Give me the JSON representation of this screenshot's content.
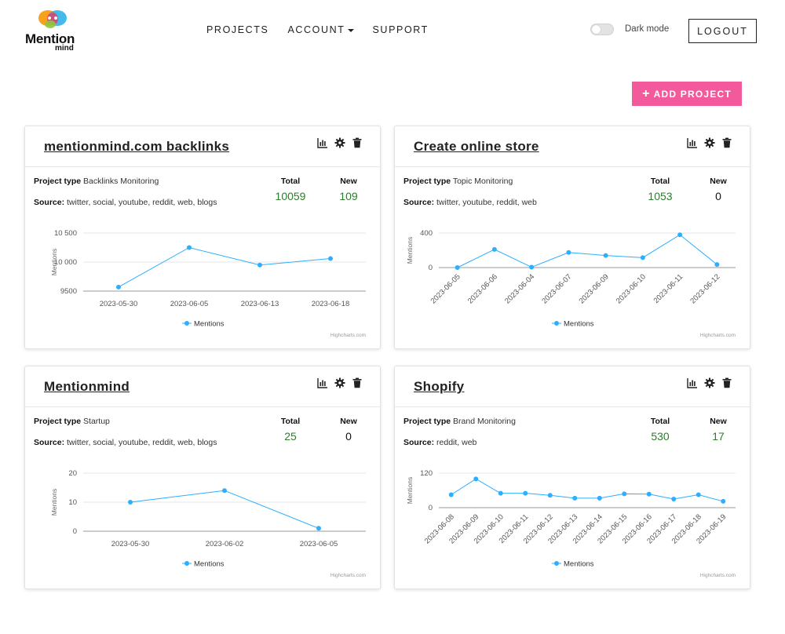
{
  "brand": {
    "name": "Mention",
    "sub": "mind"
  },
  "nav": {
    "projects": "PROJECTS",
    "account": "ACCOUNT",
    "support": "SUPPORT"
  },
  "header": {
    "dark_mode_label": "Dark mode",
    "logout_label": "LOGOUT"
  },
  "add_project_label": "ADD PROJECT",
  "labels": {
    "project_type": "Project type",
    "source": "Source:",
    "total": "Total",
    "new": "New",
    "legend": "Mentions",
    "axis_title": "Mentions",
    "credit": "Highcharts.com"
  },
  "colors": {
    "accent": "#f25a9b",
    "series": "#2caffe",
    "count_green": "#2c7c2c"
  },
  "projects": [
    {
      "title": "mentionmind.com backlinks",
      "type": "Backlinks Monitoring",
      "source": "twitter, social, youtube, reddit, web, blogs",
      "total": "10059",
      "new": "109",
      "new_green": true,
      "chart_data": {
        "type": "line",
        "x": [
          "2023-05-30",
          "2023-06-05",
          "2023-06-13",
          "2023-06-18"
        ],
        "series": [
          {
            "name": "Mentions",
            "values": [
              9570,
              10250,
              9950,
              10060
            ]
          }
        ],
        "ylim": [
          9500,
          10500
        ],
        "yticks": [
          "10 500",
          "10 000",
          "9500"
        ],
        "ytick_values": [
          10500,
          10000,
          9500
        ],
        "xlabels_rotated": false,
        "ylabel": "Mentions",
        "grid": true,
        "legend": "bottom-center"
      }
    },
    {
      "title": "Create online store",
      "type": "Topic Monitoring",
      "source": "twitter, youtube, reddit, web",
      "total": "1053",
      "new": "0",
      "new_green": false,
      "chart_data": {
        "type": "line",
        "x": [
          "2023-06-05",
          "2023-06-06",
          "2023-06-04",
          "2023-06-07",
          "2023-06-09",
          "2023-06-10",
          "2023-06-11",
          "2023-06-12"
        ],
        "series": [
          {
            "name": "Mentions",
            "values": [
              0,
              210,
              5,
              175,
              140,
              115,
              380,
              35
            ]
          }
        ],
        "ylim": [
          0,
          400
        ],
        "yticks": [
          "400",
          "0"
        ],
        "ytick_values": [
          400,
          0
        ],
        "xlabels_rotated": true,
        "ylabel": "Mentions",
        "grid": true,
        "legend": "bottom-center"
      }
    },
    {
      "title": "Mentionmind",
      "type": "Startup",
      "source": "twitter, social, youtube, reddit, web, blogs",
      "total": "25",
      "new": "0",
      "new_green": false,
      "chart_data": {
        "type": "line",
        "x": [
          "2023-05-30",
          "2023-06-02",
          "2023-06-05"
        ],
        "series": [
          {
            "name": "Mentions",
            "values": [
              10,
              14,
              1
            ]
          }
        ],
        "ylim": [
          0,
          20
        ],
        "yticks": [
          "20",
          "10",
          "0"
        ],
        "ytick_values": [
          20,
          10,
          0
        ],
        "xlabels_rotated": false,
        "ylabel": "Mentions",
        "grid": true,
        "legend": "bottom-center"
      }
    },
    {
      "title": "Shopify",
      "type": "Brand Monitoring",
      "source": "reddit, web",
      "total": "530",
      "new": "17",
      "new_green": true,
      "chart_data": {
        "type": "line",
        "x": [
          "2023-06-08",
          "2023-06-09",
          "2023-06-10",
          "2023-06-11",
          "2023-06-12",
          "2023-06-13",
          "2023-06-14",
          "2023-06-15",
          "2023-06-16",
          "2023-06-17",
          "2023-06-18",
          "2023-06-19"
        ],
        "series": [
          {
            "name": "Mentions",
            "values": [
              45,
              100,
              50,
              50,
              43,
              33,
              33,
              48,
              47,
              30,
              45,
              22
            ]
          }
        ],
        "ylim": [
          0,
          120
        ],
        "yticks": [
          "120",
          "0"
        ],
        "ytick_values": [
          120,
          0
        ],
        "xlabels_rotated": true,
        "ylabel": "Mentions",
        "grid": true,
        "legend": "bottom-center"
      }
    }
  ]
}
